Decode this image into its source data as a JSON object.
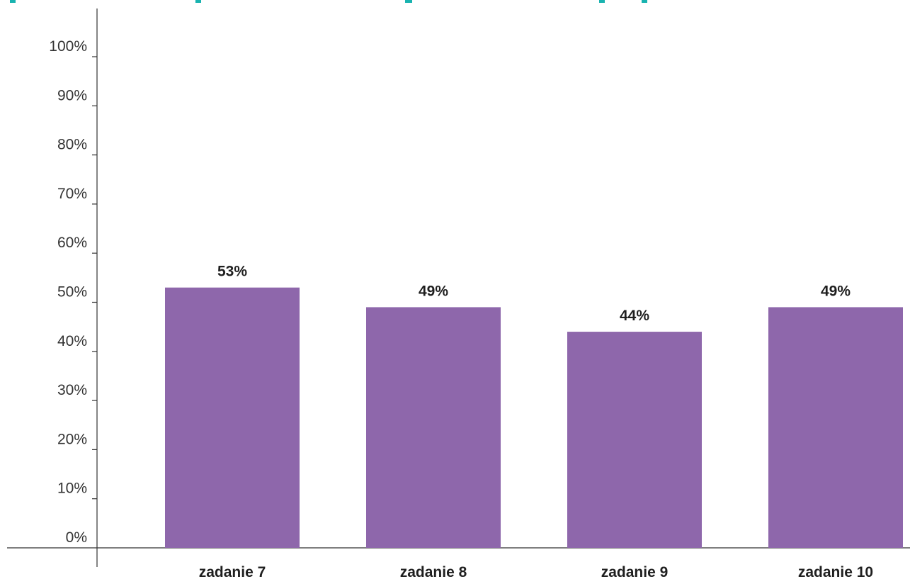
{
  "chart_data": {
    "type": "bar",
    "categories": [
      "zadanie 7",
      "zadanie 8",
      "zadanie 9",
      "zadanie 10"
    ],
    "values": [
      53,
      49,
      44,
      49
    ],
    "value_labels": [
      "53%",
      "49%",
      "44%",
      "49%"
    ],
    "y_ticks": [
      "0%",
      "10%",
      "20%",
      "30%",
      "40%",
      "50%",
      "60%",
      "70%",
      "80%",
      "90%",
      "100%"
    ],
    "ylim": [
      0,
      100
    ],
    "grid": false,
    "title": "",
    "xlabel": "",
    "ylabel": "",
    "colors": {
      "bar": "#8e67ab",
      "title": "#19b3b0",
      "axis": "#333333"
    }
  }
}
